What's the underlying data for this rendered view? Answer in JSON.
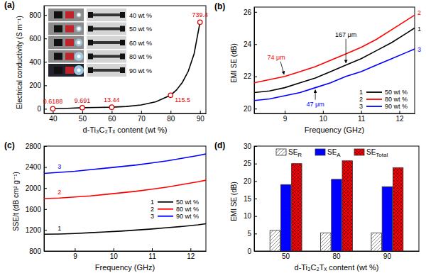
{
  "chart_data": [
    {
      "type": "scatter",
      "title": "(a)",
      "x_label": "d-Ti₃C₂Tₓ content (wt %)",
      "y_label": "Electrical conductivity (S m⁻¹)",
      "xlim": [
        37,
        92
      ],
      "xticks": [
        40,
        50,
        60,
        70,
        80,
        90
      ],
      "ylim": [
        -40,
        880
      ],
      "yticks": [
        0,
        200,
        400,
        600,
        800
      ],
      "annotations": [
        "40 wt %",
        "50 wt %",
        "60 wt %",
        "80 wt %",
        "90 wt %"
      ],
      "series": [
        {
          "type": "scatter",
          "color": "#dd0000",
          "marker": "circle",
          "data_labels": true,
          "x": [
            40,
            50,
            60,
            80,
            90
          ],
          "values": [
            0.6188,
            9.691,
            13.44,
            115.5,
            739.4
          ]
        },
        {
          "type": "line",
          "color": "#000000",
          "line_style": "solid",
          "x": [
            40,
            45,
            50,
            55,
            60,
            65,
            70,
            75,
            80,
            82,
            84,
            86,
            88,
            90
          ],
          "values": [
            0.6,
            4,
            9,
            11,
            14,
            20,
            33,
            60,
            116,
            160,
            225,
            320,
            470,
            739
          ]
        }
      ]
    },
    {
      "type": "line",
      "title": "(b)",
      "x_label": "Frequency (GHz)",
      "y_label": "EMI SE (dB)",
      "x": [
        8.2,
        8.6,
        9.0,
        9.4,
        9.8,
        10.2,
        10.6,
        11.0,
        11.4,
        11.8,
        12.2,
        12.4
      ],
      "xlim": [
        8.2,
        12.4
      ],
      "xticks": [
        9,
        10,
        11,
        12
      ],
      "ylim": [
        19.7,
        26.3
      ],
      "yticks": [
        20,
        22,
        24,
        26
      ],
      "legend": "lower right",
      "series": [
        {
          "name": "50 wt %",
          "color": "#000000",
          "line_style": "solid",
          "values": [
            21.0,
            21.1,
            21.3,
            21.6,
            21.9,
            22.3,
            22.7,
            23.1,
            23.6,
            24.1,
            24.7,
            25.0
          ]
        },
        {
          "name": "80 wt %",
          "color": "#ff0000",
          "line_style": "solid",
          "values": [
            21.6,
            21.8,
            22.0,
            22.3,
            22.6,
            23.0,
            23.4,
            23.8,
            24.3,
            24.9,
            25.5,
            25.8
          ]
        },
        {
          "name": "90 wt %",
          "color": "#0000ff",
          "line_style": "solid",
          "values": [
            20.5,
            20.6,
            20.8,
            21.0,
            21.3,
            21.6,
            22.0,
            22.3,
            22.7,
            23.1,
            23.5,
            23.7
          ]
        }
      ],
      "annotations": [
        {
          "text": "1",
          "series": 0
        },
        {
          "text": "2",
          "series": 1
        },
        {
          "text": "3",
          "series": 2
        },
        {
          "text": "167 μm",
          "series": 0
        },
        {
          "text": "74 μm",
          "series": 1
        },
        {
          "text": "47 μm",
          "series": 2
        }
      ]
    },
    {
      "type": "line",
      "title": "(c)",
      "x_label": "Frequency (GHz)",
      "y_label": "SSE/t (dB cm² g⁻¹)",
      "x": [
        8.2,
        8.6,
        9.0,
        9.4,
        9.8,
        10.2,
        10.6,
        11.0,
        11.4,
        11.8,
        12.2,
        12.4
      ],
      "xlim": [
        8.2,
        12.4
      ],
      "xticks": [
        9,
        10,
        11,
        12
      ],
      "ylim": [
        800,
        2800
      ],
      "yticks": [
        800,
        1200,
        1600,
        2000,
        2400,
        2800
      ],
      "legend": "right",
      "series": [
        {
          "name": "50 wt %",
          "color": "#000000",
          "line_style": "solid",
          "values": [
            1120,
            1125,
            1135,
            1150,
            1165,
            1180,
            1200,
            1220,
            1245,
            1270,
            1300,
            1320
          ]
        },
        {
          "name": "80 wt %",
          "color": "#ff0000",
          "line_style": "solid",
          "values": [
            1800,
            1810,
            1830,
            1850,
            1880,
            1910,
            1940,
            1980,
            2020,
            2070,
            2120,
            2150
          ]
        },
        {
          "name": "90 wt %",
          "color": "#0000ff",
          "line_style": "solid",
          "values": [
            2280,
            2300,
            2320,
            2350,
            2380,
            2410,
            2440,
            2480,
            2520,
            2570,
            2620,
            2650
          ]
        }
      ],
      "annotations": [
        {
          "text": "1",
          "series": 0
        },
        {
          "text": "2",
          "series": 1
        },
        {
          "text": "3",
          "series": 2
        }
      ]
    },
    {
      "type": "bar",
      "title": "(d)",
      "x_label": "d-Ti₃C₂Tₓ content (wt %)",
      "y_label": "EMI SE (dB)",
      "categories": [
        "50",
        "80",
        "90"
      ],
      "ylim": [
        0,
        30
      ],
      "yticks": [
        0,
        5,
        10,
        15,
        20,
        25,
        30
      ],
      "legend": "upper center",
      "series": [
        {
          "name": "SER",
          "color": "#ffffff",
          "values": [
            5.9,
            5.2,
            5.2
          ]
        },
        {
          "name": "SEA",
          "color": "#0000ff",
          "values": [
            19.0,
            20.5,
            18.4
          ]
        },
        {
          "name": "SETotal",
          "color": "#ff0000",
          "values": [
            25.0,
            25.8,
            23.8
          ]
        }
      ]
    }
  ]
}
